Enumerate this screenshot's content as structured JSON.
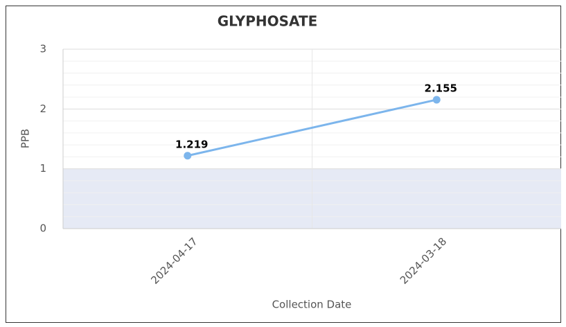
{
  "chart_data": {
    "type": "line",
    "title": "GLYPHOSATE",
    "y_label": "PPB",
    "x_label": "Collection Date",
    "categories": [
      "2024-04-17",
      "2024-03-18"
    ],
    "series": [
      {
        "name": "GLYPHOSATE",
        "color": "#7cb5ec",
        "values": [
          1.219,
          2.155
        ]
      }
    ],
    "ylim": [
      0,
      3
    ],
    "yticks": [
      0,
      1,
      2,
      3
    ],
    "grid": true,
    "minor_grid_step": 0.2,
    "plot_band": {
      "from": 0,
      "to": 1,
      "color": "#e6eaf5"
    }
  }
}
